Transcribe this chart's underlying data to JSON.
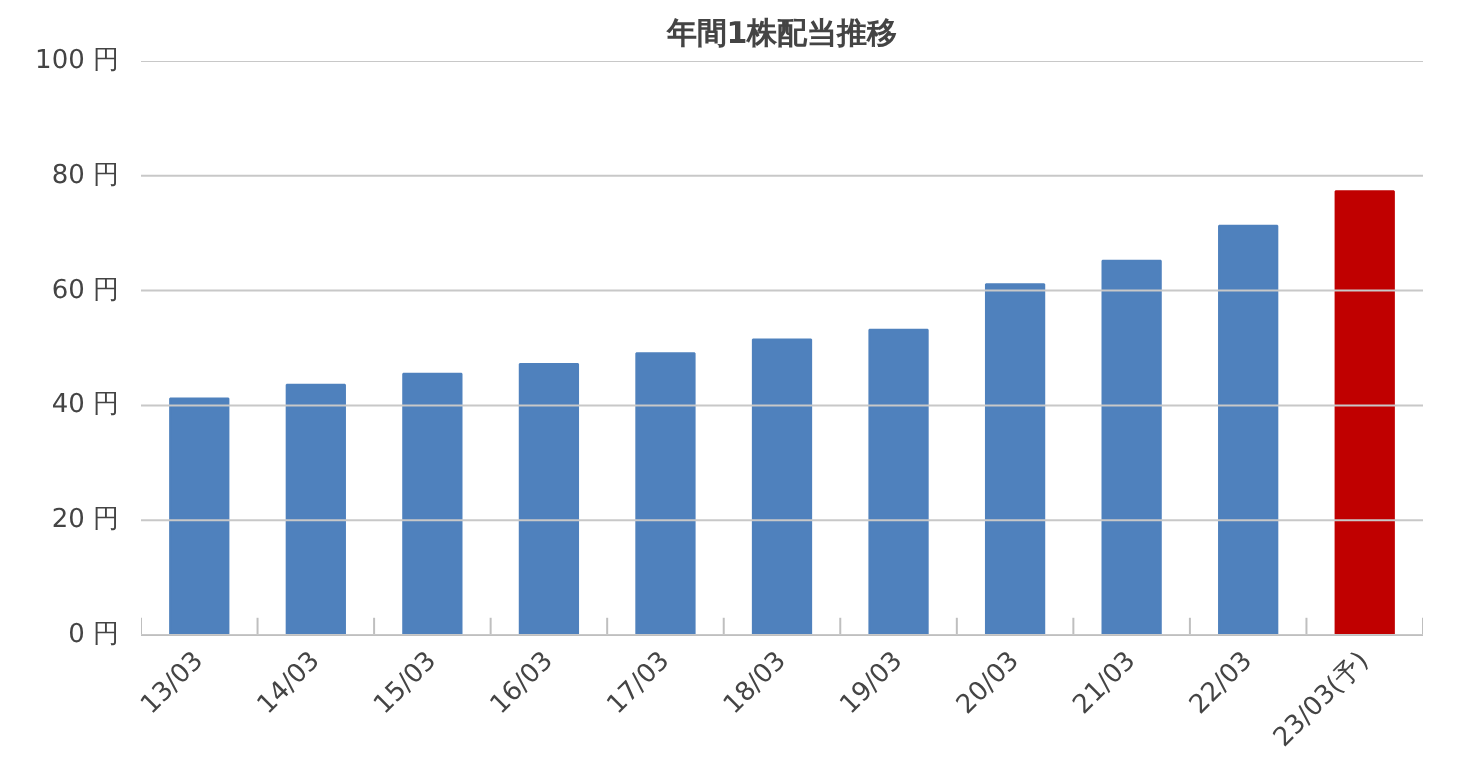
{
  "chart_data": {
    "type": "bar",
    "title": "年間1株配当推移",
    "categories": [
      "13/03",
      "14/03",
      "15/03",
      "16/03",
      "17/03",
      "18/03",
      "19/03",
      "20/03",
      "21/03",
      "22/03",
      "23/03(予)"
    ],
    "values": [
      41.2,
      43.6,
      45.5,
      47.2,
      49.1,
      51.5,
      53.2,
      61.1,
      65.2,
      71.3,
      77.3
    ],
    "colors": [
      "#4f81bd",
      "#4f81bd",
      "#4f81bd",
      "#4f81bd",
      "#4f81bd",
      "#4f81bd",
      "#4f81bd",
      "#4f81bd",
      "#4f81bd",
      "#4f81bd",
      "#c00000"
    ],
    "ylim": [
      0,
      100
    ],
    "yticks": [
      {
        "value": 0,
        "label": "0 円"
      },
      {
        "value": 20,
        "label": "20 円"
      },
      {
        "value": 40,
        "label": "40 円"
      },
      {
        "value": 60,
        "label": "60 円"
      },
      {
        "value": 80,
        "label": "80 円"
      },
      {
        "value": 100,
        "label": "100 円"
      }
    ],
    "grid": "y"
  }
}
